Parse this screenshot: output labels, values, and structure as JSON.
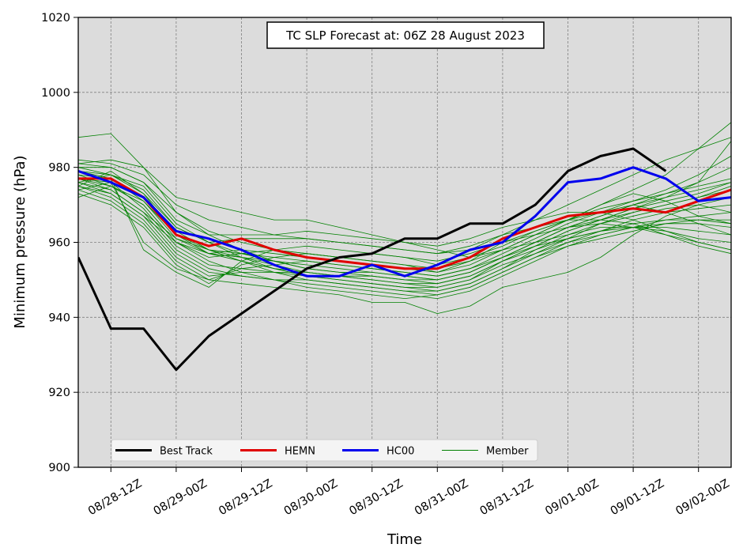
{
  "chart_data": {
    "type": "line",
    "title": "TC SLP Forecast at: 06Z 28 August 2023",
    "xlabel": "Time",
    "ylabel": "Minimum pressure (hPa)",
    "x_tick_labels": [
      "08/28-12Z",
      "08/29-00Z",
      "08/29-12Z",
      "08/30-00Z",
      "08/30-12Z",
      "08/31-00Z",
      "08/31-12Z",
      "09/01-00Z",
      "09/01-12Z",
      "09/02-00Z"
    ],
    "y_ticks": [
      900,
      920,
      940,
      960,
      980,
      1000,
      1020
    ],
    "xlim_hours": [
      0,
      120
    ],
    "x_tick_hours": [
      6,
      18,
      30,
      42,
      54,
      66,
      78,
      90,
      102,
      114
    ],
    "ylim": [
      900,
      1020
    ],
    "grid": true,
    "legend_position": "lower-left",
    "x_hours": [
      0,
      6,
      12,
      18,
      24,
      30,
      36,
      42,
      48,
      54,
      60,
      66,
      72,
      78,
      84,
      90,
      96,
      102,
      108,
      114,
      120
    ],
    "series": [
      {
        "name": "Best Track",
        "color": "#000000",
        "width": 3,
        "values": [
          956,
          937,
          937,
          926,
          935,
          941,
          947,
          953,
          956,
          957,
          961,
          961,
          965,
          965,
          970,
          979,
          983,
          985,
          979,
          null,
          null
        ]
      },
      {
        "name": "HEMN",
        "color": "#e00000",
        "width": 3,
        "values": [
          977,
          977,
          972,
          962,
          959,
          961,
          958,
          956,
          955,
          954,
          953,
          953,
          956,
          961,
          964,
          967,
          968,
          969,
          968,
          971,
          974
        ]
      },
      {
        "name": "HC00",
        "color": "#0000ee",
        "width": 3,
        "values": [
          979,
          976,
          972,
          963,
          961,
          958,
          954,
          951,
          951,
          954,
          951,
          954,
          958,
          960,
          967,
          976,
          977,
          980,
          977,
          971,
          972
        ]
      },
      {
        "name": "Member",
        "color": "#008000",
        "width": 0.8,
        "members": [
          [
            988,
            989,
            980,
            972,
            970,
            968,
            966,
            966,
            964,
            962,
            960,
            958,
            956,
            958,
            962,
            966,
            970,
            974,
            978,
            985,
            992
          ],
          [
            982,
            981,
            978,
            970,
            966,
            964,
            962,
            961,
            960,
            959,
            958,
            957,
            958,
            962,
            966,
            970,
            974,
            978,
            982,
            985,
            988
          ],
          [
            981,
            982,
            980,
            968,
            962,
            958,
            955,
            953,
            952,
            951,
            950,
            950,
            952,
            956,
            960,
            964,
            966,
            968,
            970,
            972,
            975
          ],
          [
            980,
            978,
            975,
            965,
            960,
            956,
            953,
            951,
            950,
            949,
            948,
            948,
            950,
            955,
            959,
            963,
            966,
            969,
            971,
            973,
            976
          ],
          [
            979,
            976,
            972,
            963,
            958,
            955,
            952,
            950,
            949,
            948,
            947,
            947,
            949,
            953,
            958,
            962,
            965,
            967,
            969,
            970,
            972
          ],
          [
            978,
            975,
            970,
            960,
            955,
            952,
            950,
            948,
            947,
            946,
            945,
            946,
            948,
            952,
            956,
            960,
            963,
            966,
            968,
            969,
            970
          ],
          [
            977,
            974,
            968,
            958,
            953,
            951,
            950,
            949,
            948,
            947,
            946,
            945,
            947,
            951,
            955,
            959,
            962,
            964,
            966,
            967,
            968
          ],
          [
            976,
            973,
            967,
            957,
            952,
            951,
            950,
            950,
            949,
            948,
            947,
            946,
            948,
            952,
            956,
            959,
            961,
            963,
            965,
            966,
            966
          ],
          [
            975,
            972,
            966,
            956,
            951,
            952,
            952,
            952,
            951,
            950,
            949,
            948,
            950,
            954,
            957,
            960,
            962,
            964,
            965,
            965,
            964
          ],
          [
            974,
            971,
            965,
            955,
            950,
            953,
            954,
            955,
            954,
            953,
            952,
            951,
            953,
            956,
            959,
            961,
            963,
            964,
            964,
            963,
            962
          ],
          [
            973,
            970,
            964,
            954,
            949,
            954,
            956,
            957,
            956,
            955,
            954,
            953,
            955,
            958,
            960,
            962,
            964,
            964,
            963,
            961,
            960
          ],
          [
            972,
            975,
            970,
            960,
            956,
            957,
            958,
            959,
            958,
            957,
            956,
            955,
            957,
            960,
            962,
            964,
            965,
            964,
            962,
            960,
            958
          ],
          [
            976,
            978,
            974,
            964,
            960,
            961,
            961,
            961,
            960,
            959,
            958,
            957,
            959,
            962,
            964,
            966,
            966,
            965,
            962,
            959,
            957
          ],
          [
            980,
            980,
            976,
            966,
            962,
            962,
            962,
            963,
            962,
            961,
            960,
            959,
            961,
            964,
            966,
            968,
            968,
            966,
            963,
            960,
            958
          ],
          [
            978,
            977,
            971,
            961,
            957,
            956,
            955,
            954,
            953,
            952,
            951,
            950,
            952,
            956,
            960,
            964,
            967,
            970,
            972,
            974,
            976
          ],
          [
            977,
            976,
            969,
            959,
            954,
            953,
            952,
            951,
            950,
            949,
            948,
            947,
            949,
            953,
            957,
            961,
            965,
            968,
            970,
            972,
            974
          ],
          [
            975,
            979,
            973,
            962,
            957,
            958,
            957,
            956,
            955,
            954,
            953,
            952,
            954,
            958,
            962,
            966,
            969,
            971,
            973,
            976,
            980
          ],
          [
            974,
            976,
            960,
            953,
            950,
            949,
            948,
            947,
            946,
            944,
            944,
            941,
            943,
            948,
            950,
            952,
            956,
            962,
            967,
            970,
            968
          ],
          [
            979,
            977,
            958,
            952,
            948,
            955,
            958,
            957,
            956,
            955,
            954,
            952,
            955,
            960,
            963,
            966,
            970,
            973,
            971,
            967,
            965
          ],
          [
            981,
            980,
            976,
            968,
            963,
            960,
            958,
            957,
            956,
            957,
            956,
            954,
            956,
            959,
            963,
            966,
            968,
            970,
            968,
            965,
            962
          ],
          [
            977,
            975,
            971,
            962,
            958,
            957,
            956,
            955,
            954,
            953,
            952,
            951,
            953,
            957,
            961,
            965,
            968,
            971,
            974,
            978,
            983
          ],
          [
            976,
            974,
            968,
            961,
            958,
            956,
            954,
            952,
            951,
            950,
            949,
            949,
            951,
            955,
            959,
            963,
            966,
            969,
            972,
            976,
            987
          ],
          [
            979,
            978,
            973,
            964,
            960,
            957,
            955,
            953,
            952,
            952,
            951,
            950,
            952,
            956,
            960,
            964,
            967,
            970,
            973,
            975,
            977
          ],
          [
            975,
            973,
            967,
            960,
            957,
            955,
            953,
            952,
            951,
            951,
            950,
            949,
            951,
            955,
            958,
            961,
            963,
            965,
            966,
            966,
            965
          ]
        ]
      }
    ]
  }
}
